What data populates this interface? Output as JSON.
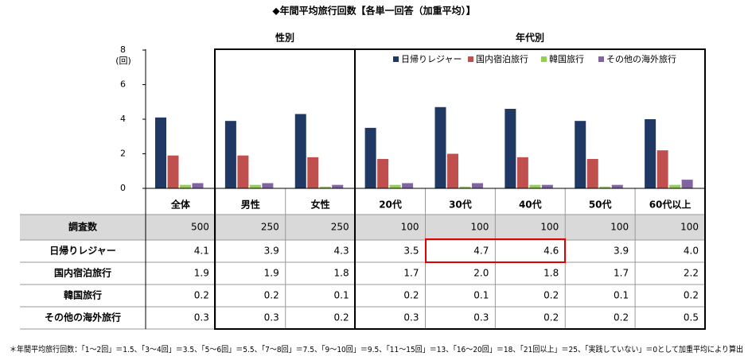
{
  "chart_data": {
    "type": "bar",
    "title": "◆年間平均旅行回数【各単一回答（加重平均）】",
    "group_labels": [
      "性別",
      "年代別"
    ],
    "y_label": "(回)",
    "categories": [
      "全体",
      "男性",
      "女性",
      "20代",
      "30代",
      "40代",
      "50代",
      "60代以上"
    ],
    "sample_size_label": "調査数",
    "sample_sizes": [
      500,
      250,
      250,
      100,
      100,
      100,
      100,
      100
    ],
    "series": [
      {
        "name": "日帰りレジャー",
        "color": "#1f3864",
        "values": [
          4.1,
          3.9,
          4.3,
          3.5,
          4.7,
          4.6,
          3.9,
          4.0
        ],
        "value_labels": [
          "4.1",
          "3.9",
          "4.3",
          "3.5",
          "4.7",
          "4.6",
          "3.9",
          "4.0"
        ]
      },
      {
        "name": "国内宿泊旅行",
        "color": "#c0504d",
        "values": [
          1.9,
          1.9,
          1.8,
          1.7,
          2.0,
          1.8,
          1.7,
          2.2
        ],
        "value_labels": [
          "1.9",
          "1.9",
          "1.8",
          "1.7",
          "2.0",
          "1.8",
          "1.7",
          "2.2"
        ]
      },
      {
        "name": "韓国旅行",
        "color": "#92d050",
        "values": [
          0.2,
          0.2,
          0.1,
          0.2,
          0.1,
          0.2,
          0.1,
          0.2
        ],
        "value_labels": [
          "0.2",
          "0.2",
          "0.1",
          "0.2",
          "0.1",
          "0.2",
          "0.1",
          "0.2"
        ]
      },
      {
        "name": "その他の海外旅行",
        "color": "#8064a2",
        "values": [
          0.3,
          0.3,
          0.2,
          0.3,
          0.3,
          0.2,
          0.2,
          0.5
        ],
        "value_labels": [
          "0.3",
          "0.3",
          "0.2",
          "0.3",
          "0.3",
          "0.2",
          "0.2",
          "0.5"
        ]
      }
    ],
    "ylim": [
      0,
      8
    ],
    "yticks": [
      0,
      2,
      4,
      6,
      8
    ],
    "grid": false,
    "footnote": "＊年間平均旅行回数：「1～2回」＝1.5、「3～4回」＝3.5、「5～6回」＝5.5、「7～8回」＝7.5、「9～10回」＝9.5、「11～15回」＝13、「16～20回」＝18、「21回以上」＝25、「実践していない」＝0として加重平均により算出"
  }
}
